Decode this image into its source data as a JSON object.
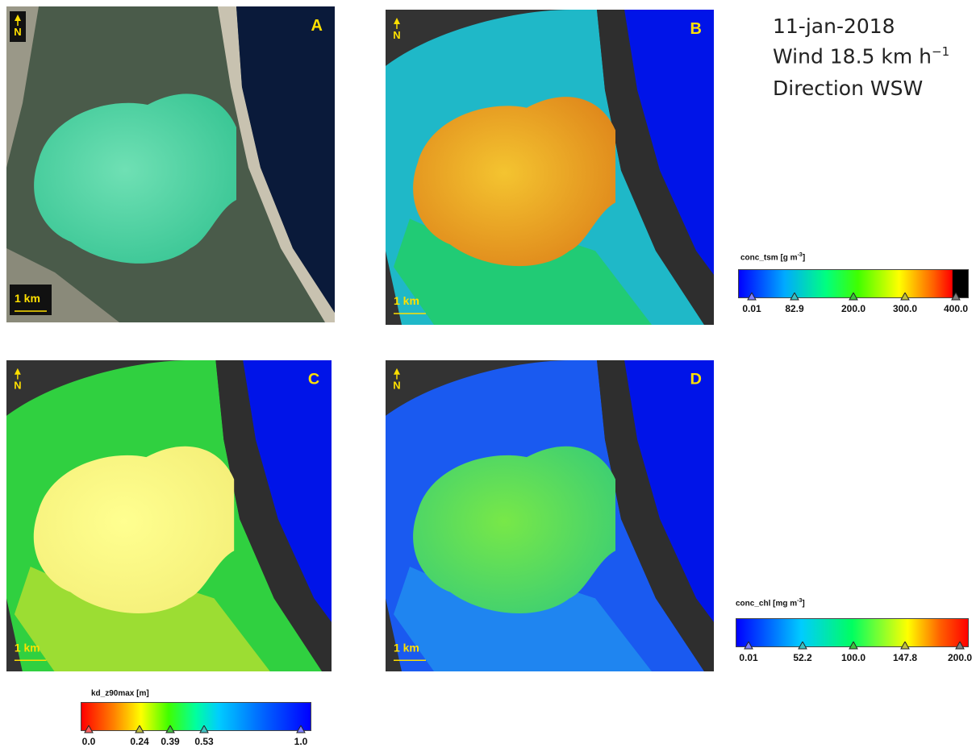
{
  "header": {
    "date": "11-jan-2018",
    "wind": {
      "text": "Wind 18.5 km h",
      "sup": "−1"
    },
    "direction": "Direction WSW"
  },
  "panels": [
    {
      "label": "A",
      "north": "N",
      "scale": "1 km"
    },
    {
      "label": "B",
      "north": "N",
      "scale": "1 km"
    },
    {
      "label": "C",
      "north": "N",
      "scale": "1 km"
    },
    {
      "label": "D",
      "north": "N",
      "scale": "1 km"
    }
  ],
  "colorbars": {
    "tsm": {
      "title": {
        "text": "conc_tsm [g m",
        "sup": "-3",
        "suffix": "]"
      },
      "ticks": [
        "0.01",
        "82.9",
        "200.0",
        "300.0",
        "400.0"
      ]
    },
    "chl": {
      "title": {
        "text": "conc_chl [mg m",
        "sup": "-3",
        "suffix": "]"
      },
      "ticks": [
        "0.01",
        "52.2",
        "100.0",
        "147.8",
        "200.0"
      ]
    },
    "kd": {
      "title": "kd_z90max [m]",
      "ticks": [
        "0.0",
        "0.24",
        "0.39",
        "0.53",
        "1.0"
      ]
    }
  }
}
